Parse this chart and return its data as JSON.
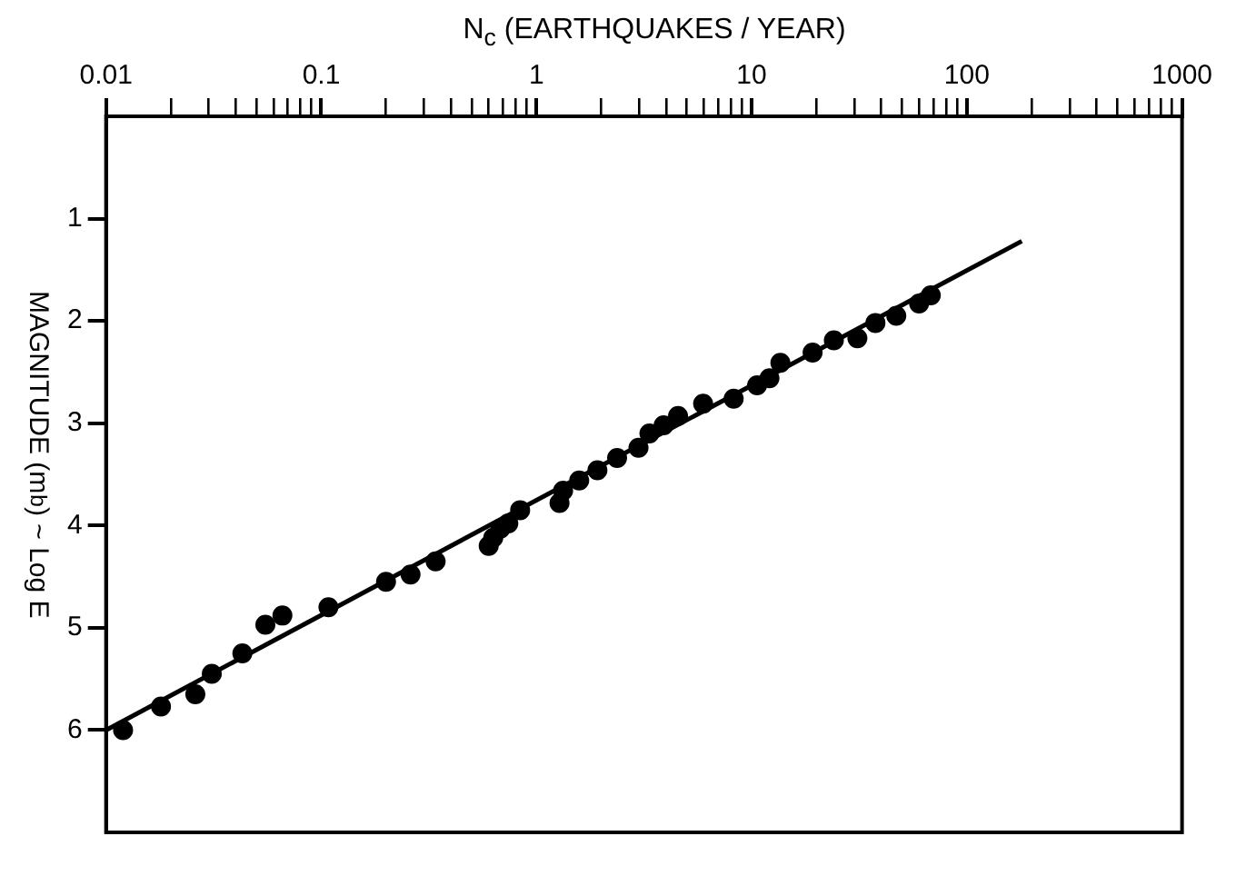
{
  "chart_data": {
    "type": "scatter",
    "xlabel": "N$_{c}$ (EARTHQUAKES / YEAR)",
    "ylabel": "MAGNITUDE (m$_{b}$) ~ Log E",
    "log": "x",
    "xlim": [
      0.01,
      1000
    ],
    "ylim": [
      7,
      0
    ],
    "xticks": [
      0.01,
      {
        "value": 0.02,
        "label": null
      },
      {
        "value": 0.03,
        "label": null
      },
      {
        "value": 0.04,
        "label": null
      },
      {
        "value": 0.05,
        "label": null
      },
      {
        "value": 0.06,
        "label": null
      },
      {
        "value": 0.07,
        "label": null
      },
      {
        "value": 0.08,
        "label": null
      },
      {
        "value": 0.09,
        "label": null
      },
      0.1,
      {
        "value": 0.2,
        "label": null
      },
      {
        "value": 0.3,
        "label": null
      },
      {
        "value": 0.4,
        "label": null
      },
      {
        "value": 0.5,
        "label": null
      },
      {
        "value": 0.6,
        "label": null
      },
      {
        "value": 0.7,
        "label": null
      },
      {
        "value": 0.8,
        "label": null
      },
      {
        "value": 0.9,
        "label": null
      },
      1,
      {
        "value": 2,
        "label": null
      },
      {
        "value": 3,
        "label": null
      },
      {
        "value": 4,
        "label": null
      },
      {
        "value": 5,
        "label": null
      },
      {
        "value": 6,
        "label": null
      },
      {
        "value": 7,
        "label": null
      },
      {
        "value": 8,
        "label": null
      },
      {
        "value": 9,
        "label": null
      },
      10,
      {
        "value": 20,
        "label": null
      },
      {
        "value": 30,
        "label": null
      },
      {
        "value": 40,
        "label": null
      },
      {
        "value": 50,
        "label": null
      },
      {
        "value": 60,
        "label": null
      },
      {
        "value": 70,
        "label": null
      },
      {
        "value": 80,
        "label": null
      },
      {
        "value": 90,
        "label": null
      },
      100,
      {
        "value": 200,
        "label": null
      },
      {
        "value": 300,
        "label": null
      },
      {
        "value": 400,
        "label": null
      },
      {
        "value": 500,
        "label": null
      },
      {
        "value": 600,
        "label": null
      },
      {
        "value": 700,
        "label": null
      },
      {
        "value": 800,
        "label": null
      },
      {
        "value": 900,
        "label": null
      },
      1000
    ],
    "yticks": [
      1,
      2,
      3,
      4,
      5,
      6
    ],
    "grid": false,
    "marker": "circle",
    "series": [
      {
        "color": "#000000",
        "x": [
          0.012,
          0.018,
          0.026,
          0.031,
          0.043,
          0.055,
          0.066,
          0.108,
          0.2,
          0.26,
          0.34,
          0.6,
          0.63,
          0.68,
          0.74,
          0.84,
          1.28,
          1.33,
          1.58,
          1.92,
          2.37,
          2.98,
          3.35,
          3.9,
          4.55,
          5.95,
          8.25,
          10.6,
          12.1,
          13.6,
          19.2,
          24.1,
          31,
          37.6,
          47,
          60,
          68
        ],
        "values": [
          6.0,
          5.77,
          5.65,
          5.45,
          5.25,
          4.97,
          4.88,
          4.8,
          4.55,
          4.48,
          4.35,
          4.2,
          4.12,
          4.03,
          3.98,
          3.85,
          3.78,
          3.66,
          3.56,
          3.46,
          3.34,
          3.24,
          3.1,
          3.02,
          2.93,
          2.81,
          2.76,
          2.63,
          2.56,
          2.41,
          2.31,
          2.19,
          2.17,
          2.02,
          1.95,
          1.83,
          1.75
        ]
      },
      {
        "type": "line",
        "color": "#000000",
        "marker": "none",
        "x": [
          0.01,
          180
        ],
        "values": [
          6.0,
          1.22
        ]
      }
    ]
  }
}
